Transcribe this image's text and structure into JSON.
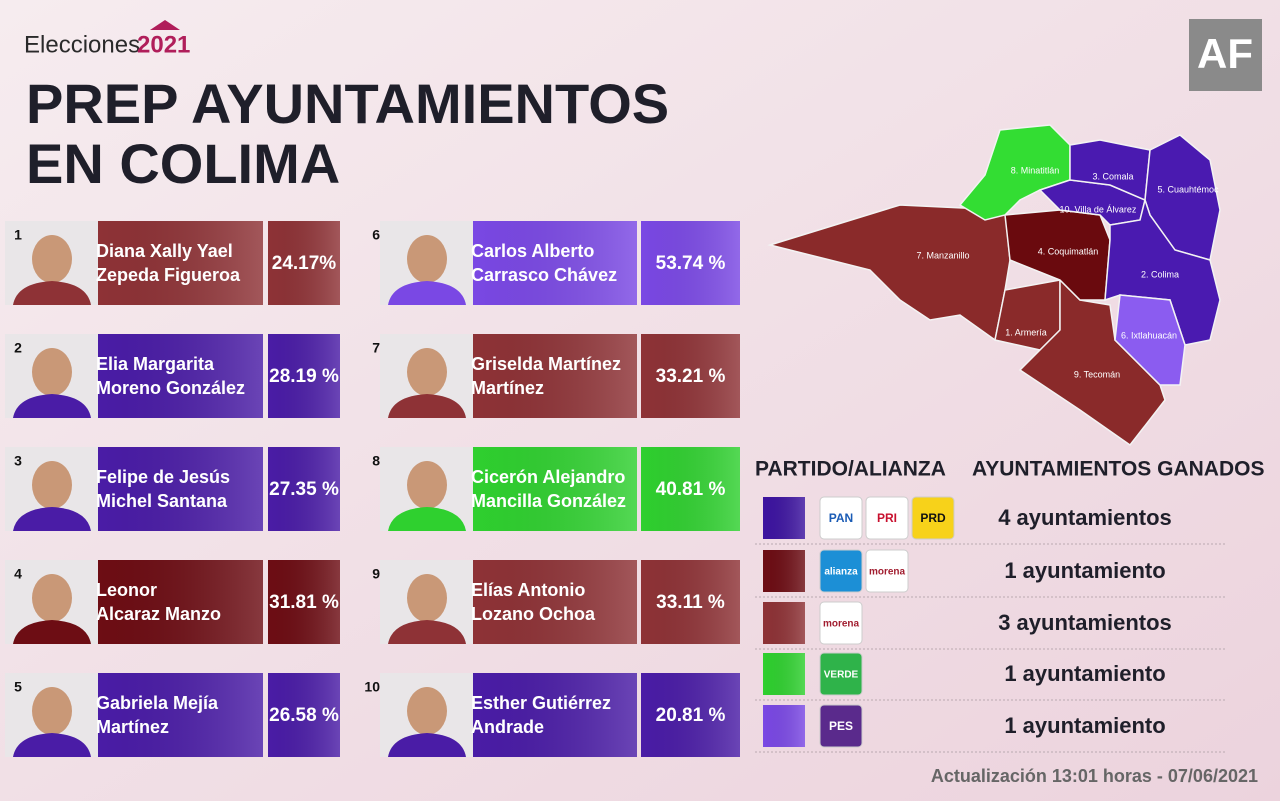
{
  "header": {
    "brand": "Elecciones",
    "brand_year": "2021",
    "title_lines": [
      "PREP AYUNTAMIENTOS",
      "EN COLIMA"
    ],
    "logo": "AF"
  },
  "candidates": [
    {
      "number": "1",
      "name_lines": [
        "Diana Xally Yael",
        "Zepeda Figueroa"
      ],
      "percent": "24.17%",
      "color": "#8e3236"
    },
    {
      "number": "2",
      "name_lines": [
        "Elia Margarita",
        "Moreno González"
      ],
      "percent": "28.19 %",
      "color": "#4a1ca6"
    },
    {
      "number": "3",
      "name_lines": [
        "Felipe de Jesús",
        "Michel Santana"
      ],
      "percent": "27.35 %",
      "color": "#4a1ca6"
    },
    {
      "number": "4",
      "name_lines": [
        "Leonor",
        "Alcaraz Manzo"
      ],
      "percent": "31.81 %",
      "color": "#6d0d14"
    },
    {
      "number": "5",
      "name_lines": [
        "Gabriela Mejía",
        "Martínez"
      ],
      "percent": "26.58 %",
      "color": "#4a1ca6"
    },
    {
      "number": "6",
      "name_lines": [
        "Carlos Alberto",
        "Carrasco Chávez"
      ],
      "percent": "53.74 %",
      "color": "#7a48e4"
    },
    {
      "number": "7",
      "name_lines": [
        "Griselda Martínez",
        "Martínez"
      ],
      "percent": "33.21 %",
      "color": "#8e3236"
    },
    {
      "number": "8",
      "name_lines": [
        "Cicerón Alejandro",
        "Mancilla González"
      ],
      "percent": "40.81 %",
      "color": "#2fd02f"
    },
    {
      "number": "9",
      "name_lines": [
        "Elías Antonio",
        "Lozano Ochoa"
      ],
      "percent": "33.11 %",
      "color": "#8e3236"
    },
    {
      "number": "10",
      "name_lines": [
        "Esther Gutiérrez",
        "Andrade"
      ],
      "percent": "20.81 %",
      "color": "#4a1ca6"
    }
  ],
  "map": {
    "labels": [
      "8. Minatitlán",
      "3. Comala",
      "5. Cuauhtémoc",
      "10. Villa de Álvarez",
      "7. Manzanillo",
      "4. Coquimatlán",
      "2. Colima",
      "1. Armería",
      "6. Ixtlahuacán",
      "9. Tecomán"
    ]
  },
  "legend": {
    "headers": [
      "PARTIDO/ALIANZA",
      "AYUNTAMIENTOS GANADOS"
    ],
    "rows": [
      {
        "color": "#3d14a0",
        "logos": [
          "PAN",
          "PRI",
          "PRD"
        ],
        "count": "4 ayuntamientos"
      },
      {
        "color": "#6d0d14",
        "logos": [
          "alianza",
          "morena"
        ],
        "count": "1 ayuntamiento"
      },
      {
        "color": "#8e3236",
        "logos": [
          "morena"
        ],
        "count": "3 ayuntamientos"
      },
      {
        "color": "#2fd02f",
        "logos": [
          "VERDE"
        ],
        "count": "1 ayuntamiento"
      },
      {
        "color": "#7a48e4",
        "logos": [
          "PES"
        ],
        "count": "1 ayuntamiento"
      }
    ]
  },
  "footer": "Actualización 13:01 horas - 07/06/2021"
}
